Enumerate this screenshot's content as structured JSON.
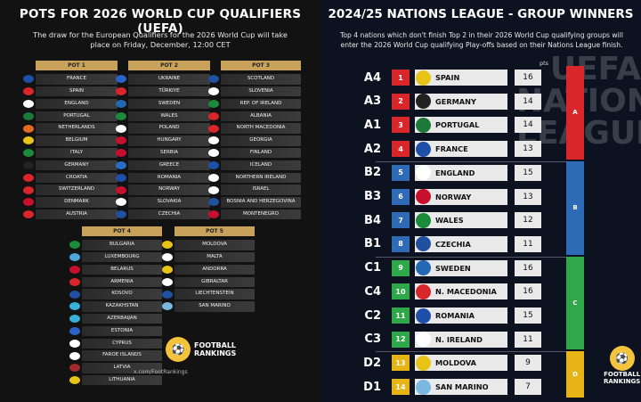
{
  "left": {
    "title": "POTS FOR 2026 WORLD CUP QUALIFIERS (UEFA)",
    "subtitle": "The draw for the European Qualifiers for the 2026 World Cup will take place on Friday, December, 12:00 CET",
    "pots": [
      {
        "label": "POT 1",
        "teams": [
          "FRANCE",
          "SPAIN",
          "ENGLAND",
          "PORTUGAL",
          "NETHERLANDS",
          "BELGIUM",
          "ITALY",
          "GERMANY",
          "CROATIA",
          "SWITZERLAND",
          "DENMARK",
          "AUSTRIA"
        ],
        "colors": [
          "#1f4fa8",
          "#d8262a",
          "#ffffff",
          "#1b7a3a",
          "#e46a22",
          "#e6c316",
          "#1c8a3d",
          "#222222",
          "#d8262a",
          "#d8262a",
          "#c8102e",
          "#d8262a"
        ]
      },
      {
        "label": "POT 2",
        "teams": [
          "UKRAINE",
          "TÜRKIYE",
          "SWEDEN",
          "WALES",
          "POLAND",
          "HUNGARY",
          "SERBIA",
          "GREECE",
          "ROMANIA",
          "NORWAY",
          "SLOVAKIA",
          "CZECHIA"
        ],
        "colors": [
          "#2a62c8",
          "#d8262a",
          "#2468b4",
          "#1b8a3a",
          "#ffffff",
          "#c8102e",
          "#c8102e",
          "#2b6cc4",
          "#1f4fa8",
          "#c8102e",
          "#ffffff",
          "#2250a0"
        ]
      },
      {
        "label": "POT 3",
        "teams": [
          "SCOTLAND",
          "SLOVENIA",
          "REP. OF IRELAND",
          "ALBANIA",
          "NORTH MACEDONIA",
          "GEORGIA",
          "FINLAND",
          "ICELAND",
          "NORTHERN IRELAND",
          "ISRAEL",
          "BOSNIA AND HERZEGOVINA",
          "MONTENEGRO"
        ],
        "colors": [
          "#2250a0",
          "#ffffff",
          "#1b8a3a",
          "#d8262a",
          "#d8262a",
          "#ffffff",
          "#ffffff",
          "#1f4fa8",
          "#ffffff",
          "#ffffff",
          "#2250a0",
          "#c8102e"
        ]
      },
      {
        "label": "POT 4",
        "teams": [
          "BULGARIA",
          "LUXEMBOURG",
          "BELARUS",
          "ARMENIA",
          "KOSOVO",
          "KAZAKHSTAN",
          "AZERBAIJAN",
          "ESTONIA",
          "CYPRUS",
          "FAROE ISLANDS",
          "LATVIA",
          "LITHUANIA"
        ],
        "colors": [
          "#1b8a3a",
          "#4ea3d8",
          "#c8102e",
          "#d8262a",
          "#2250a0",
          "#3ab0d8",
          "#3ab0d8",
          "#2a62c8",
          "#ffffff",
          "#ffffff",
          "#9e2a2b",
          "#e6c316"
        ]
      },
      {
        "label": "POT 5",
        "teams": [
          "MOLDOVA",
          "MALTA",
          "ANDORRA",
          "GIBRALTAR",
          "LIECHTENSTEIN",
          "SAN MARINO"
        ],
        "colors": [
          "#e6c316",
          "#ffffff",
          "#e6c316",
          "#ffffff",
          "#2250a0",
          "#7ab8e0"
        ]
      }
    ],
    "handle": "x.com/FootRankings",
    "logo_line1": "FOOTBALL",
    "logo_line2": "RANKINGS"
  },
  "right": {
    "title": "2024/25 NATIONS LEAGUE - GROUP WINNERS",
    "subtitle": "Top 4 nations which don't finish Top 2 in their 2026 World Cup qualifying groups will enter the 2026 World Cup qualifying Play-offs based on their Nations League finish.",
    "pts_header": "pts",
    "rows": [
      {
        "group": "A4",
        "rank": "1",
        "team": "SPAIN",
        "pts": "16",
        "rank_color": "#d8262a",
        "flag": "#e6c316"
      },
      {
        "group": "A3",
        "rank": "2",
        "team": "GERMANY",
        "pts": "14",
        "rank_color": "#d8262a",
        "flag": "#222222"
      },
      {
        "group": "A1",
        "rank": "3",
        "team": "PORTUGAL",
        "pts": "14",
        "rank_color": "#d8262a",
        "flag": "#1b7a3a"
      },
      {
        "group": "A2",
        "rank": "4",
        "team": "FRANCE",
        "pts": "13",
        "rank_color": "#d8262a",
        "flag": "#1f4fa8"
      },
      {
        "group": "B2",
        "rank": "5",
        "team": "ENGLAND",
        "pts": "15",
        "rank_color": "#2e6ab5",
        "flag": "#ffffff"
      },
      {
        "group": "B3",
        "rank": "6",
        "team": "NORWAY",
        "pts": "13",
        "rank_color": "#2e6ab5",
        "flag": "#c8102e"
      },
      {
        "group": "B4",
        "rank": "7",
        "team": "WALES",
        "pts": "12",
        "rank_color": "#2e6ab5",
        "flag": "#1b8a3a"
      },
      {
        "group": "B1",
        "rank": "8",
        "team": "CZECHIA",
        "pts": "11",
        "rank_color": "#2e6ab5",
        "flag": "#2250a0"
      },
      {
        "group": "C1",
        "rank": "9",
        "team": "SWEDEN",
        "pts": "16",
        "rank_color": "#2fa84a",
        "flag": "#2468b4"
      },
      {
        "group": "C4",
        "rank": "10",
        "team": "N. MACEDONIA",
        "pts": "16",
        "rank_color": "#2fa84a",
        "flag": "#d8262a"
      },
      {
        "group": "C2",
        "rank": "11",
        "team": "ROMANIA",
        "pts": "15",
        "rank_color": "#2fa84a",
        "flag": "#1f4fa8"
      },
      {
        "group": "C3",
        "rank": "12",
        "team": "N. IRELAND",
        "pts": "11",
        "rank_color": "#2fa84a",
        "flag": "#ffffff"
      },
      {
        "group": "D2",
        "rank": "13",
        "team": "MOLDOVA",
        "pts": "9",
        "rank_color": "#e6b414",
        "flag": "#e6c316"
      },
      {
        "group": "D1",
        "rank": "14",
        "team": "SAN MARINO",
        "pts": "7",
        "rank_color": "#e6b414",
        "flag": "#7ab8e0"
      }
    ],
    "league_bars": [
      {
        "label": "A",
        "color": "#d8262a"
      },
      {
        "label": "B",
        "color": "#2e6ab5"
      },
      {
        "label": "C",
        "color": "#2fa84a"
      },
      {
        "label": "D",
        "color": "#e6b414"
      }
    ],
    "bg_text": "UEFA NATIONS LEAGUE",
    "logo_line1": "FOOTBALL",
    "logo_line2": "RANKINGS"
  }
}
